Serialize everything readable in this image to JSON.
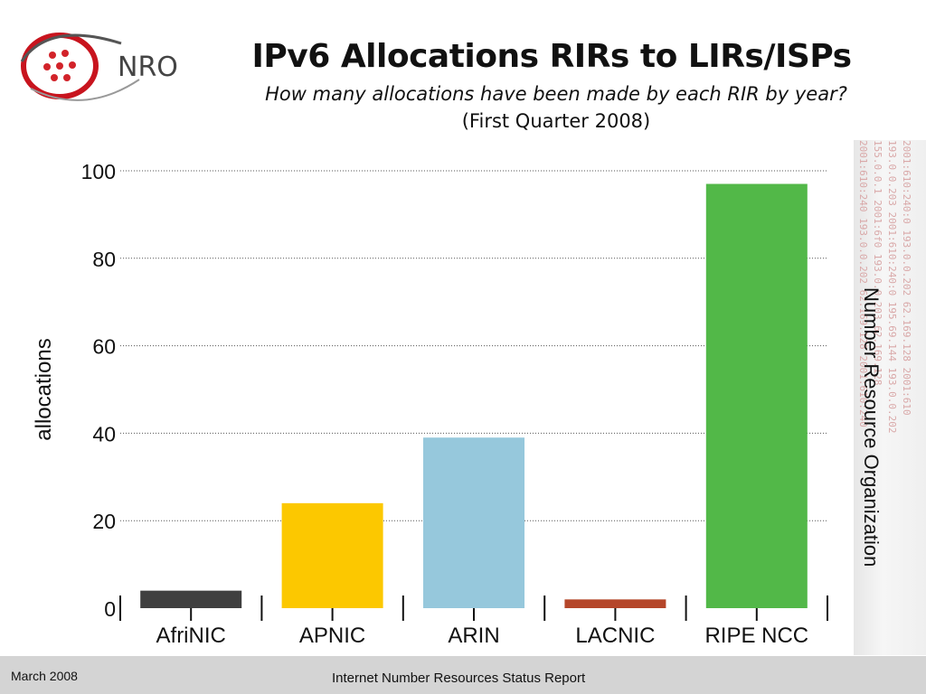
{
  "header": {
    "logo_text": "NRO",
    "title": "IPv6 Allocations RIRs to LIRs/ISPs",
    "subtitle": "How many allocations have been made by each RIR by year?",
    "subtitle2": "(First Quarter 2008)"
  },
  "side_label": "Number Resource Organization",
  "side_strip_text": [
    "2001:610:240 193.0.0.202 62.169.128 2001:610:240",
    "155.0.0.1 2001:6f0 193.0.0.203 62.169.128",
    "193.0.0.203 2001:610:240:0 195.69.144 193.0.0.202",
    "2001:610:240:0 193.0.0.202 62.169.128 2001:610"
  ],
  "chart_data": {
    "type": "bar",
    "categories": [
      "AfriNIC",
      "APNIC",
      "ARIN",
      "LACNIC",
      "RIPE NCC"
    ],
    "values": [
      4,
      24,
      39,
      2,
      97
    ],
    "colors": [
      "#3f3f3f",
      "#fcc800",
      "#96c8dc",
      "#b5462a",
      "#52b848"
    ],
    "ylabel": "allocations",
    "ylim": [
      0,
      100
    ],
    "yticks": [
      0,
      20,
      40,
      60,
      80,
      100
    ],
    "grid": "dotted horizontal"
  },
  "footer": {
    "date": "March 2008",
    "report": "Internet Number Resources Status Report"
  }
}
